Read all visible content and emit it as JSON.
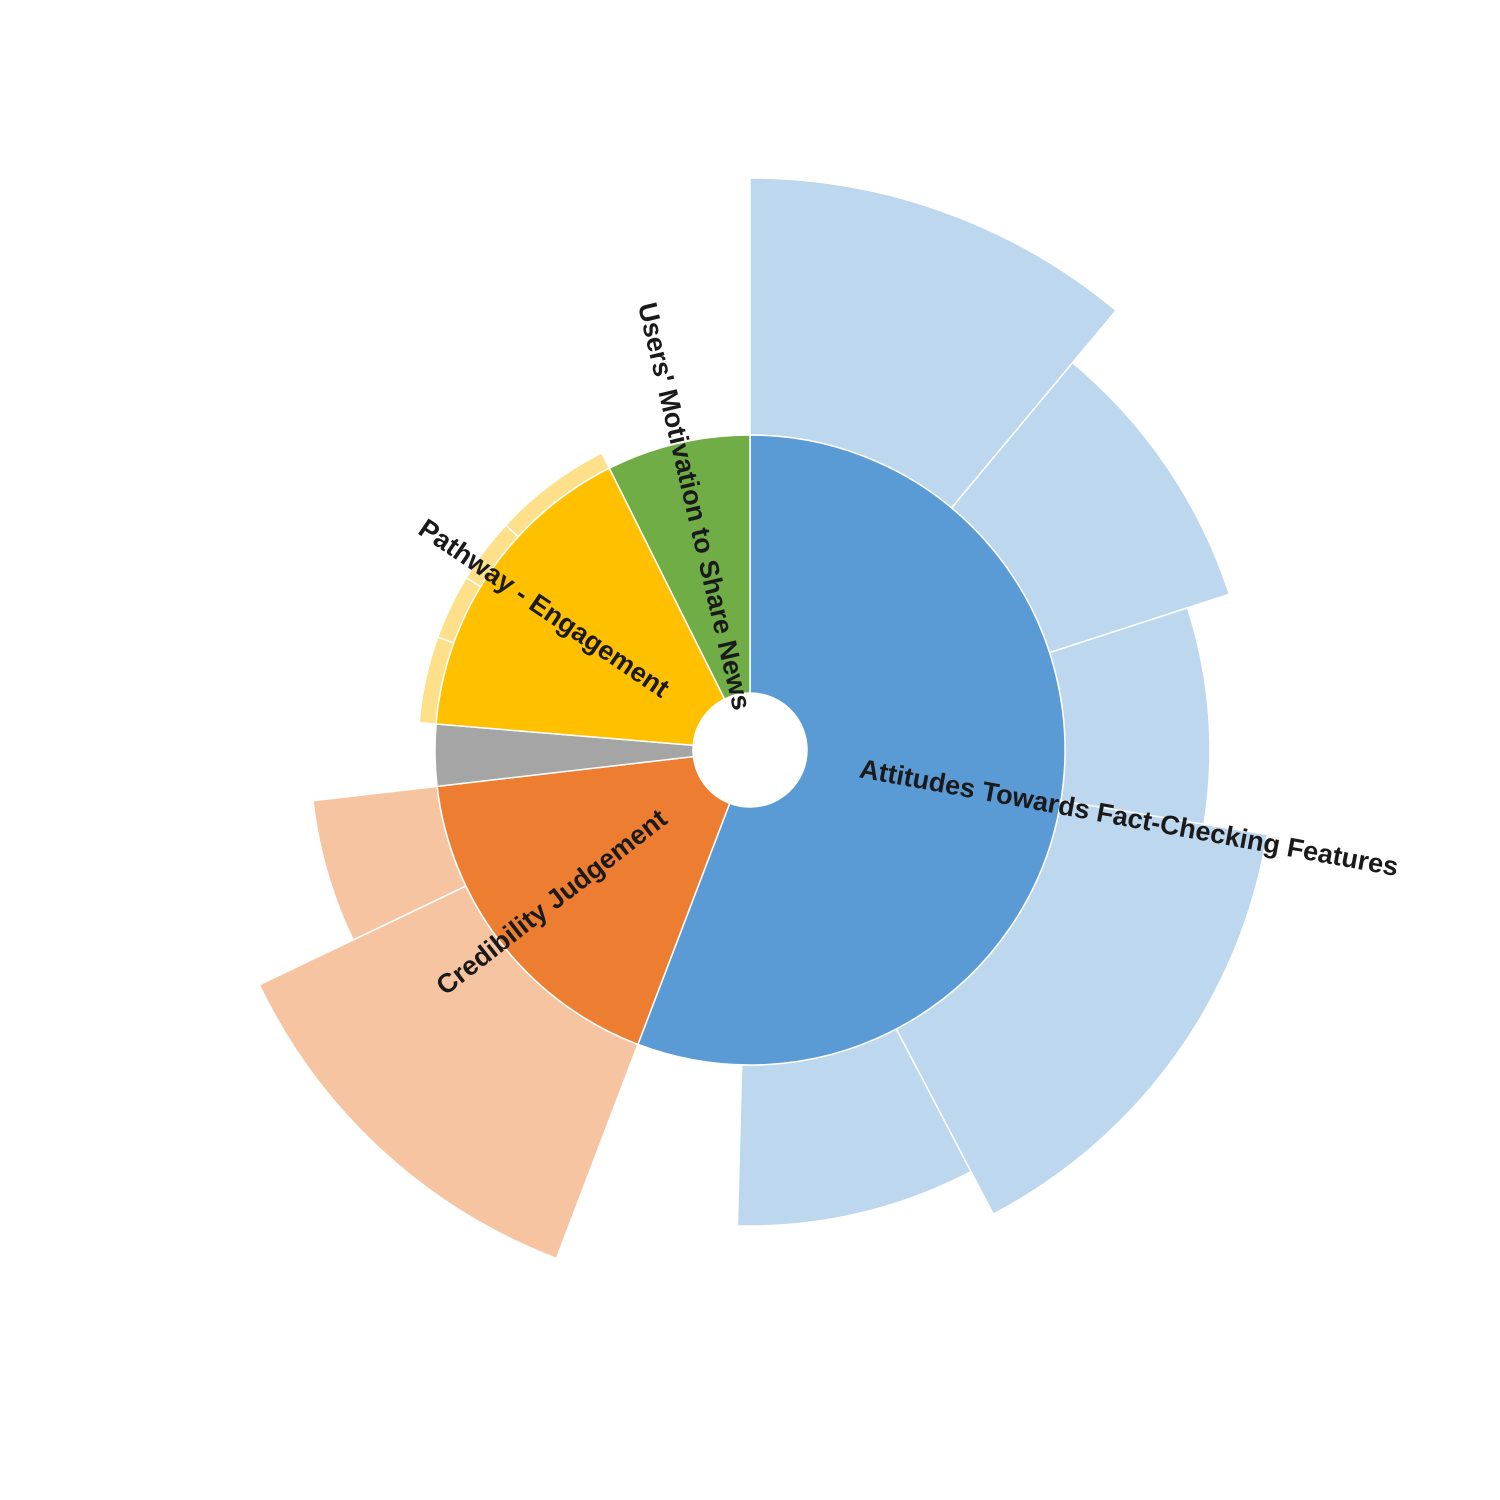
{
  "chart_data": {
    "type": "sunburst",
    "categories": [
      {
        "name": "Attitudes Towards Fact-Checking Features",
        "value": 53.0,
        "color": "#5B9BD5",
        "subcolor": "#BDD7EE",
        "children": [
          {
            "value": 10.5,
            "level": 1.43
          },
          {
            "value": 8.5,
            "level": 1.26
          },
          {
            "value": 7.2,
            "level": 1.15
          },
          {
            "value": 14.0,
            "level": 1.31
          },
          {
            "value": 7.7,
            "level": 1.19
          },
          {
            "value": 5.1,
            "level": 0.0
          }
        ]
      },
      {
        "name": "Credibility Judgement",
        "value": 16.5,
        "color": "#ED7D31",
        "subcolor": "#F7C4A2",
        "children": [
          {
            "value": 11.5,
            "level": 1.36
          },
          {
            "value": 5.0,
            "level": 1.1
          }
        ]
      },
      {
        "name": "",
        "value": 3.0,
        "color": "#A5A5A5",
        "subcolor": "#D9D9D9",
        "children": []
      },
      {
        "name": "Pathway - Engagement",
        "value": 15.5,
        "color": "#FFC000",
        "subcolor": "#FFE08A",
        "children": [
          {
            "value": 4.0,
            "level": 0.83
          },
          {
            "value": 3.0,
            "level": 0.83
          },
          {
            "value": 3.0,
            "level": 0.83
          },
          {
            "value": 5.5,
            "level": 0.83
          }
        ]
      },
      {
        "name": "Users' Motivation to Share News",
        "value": 7.0,
        "color": "#70AD47",
        "subcolor": "#C5E0B4",
        "children": []
      }
    ]
  }
}
